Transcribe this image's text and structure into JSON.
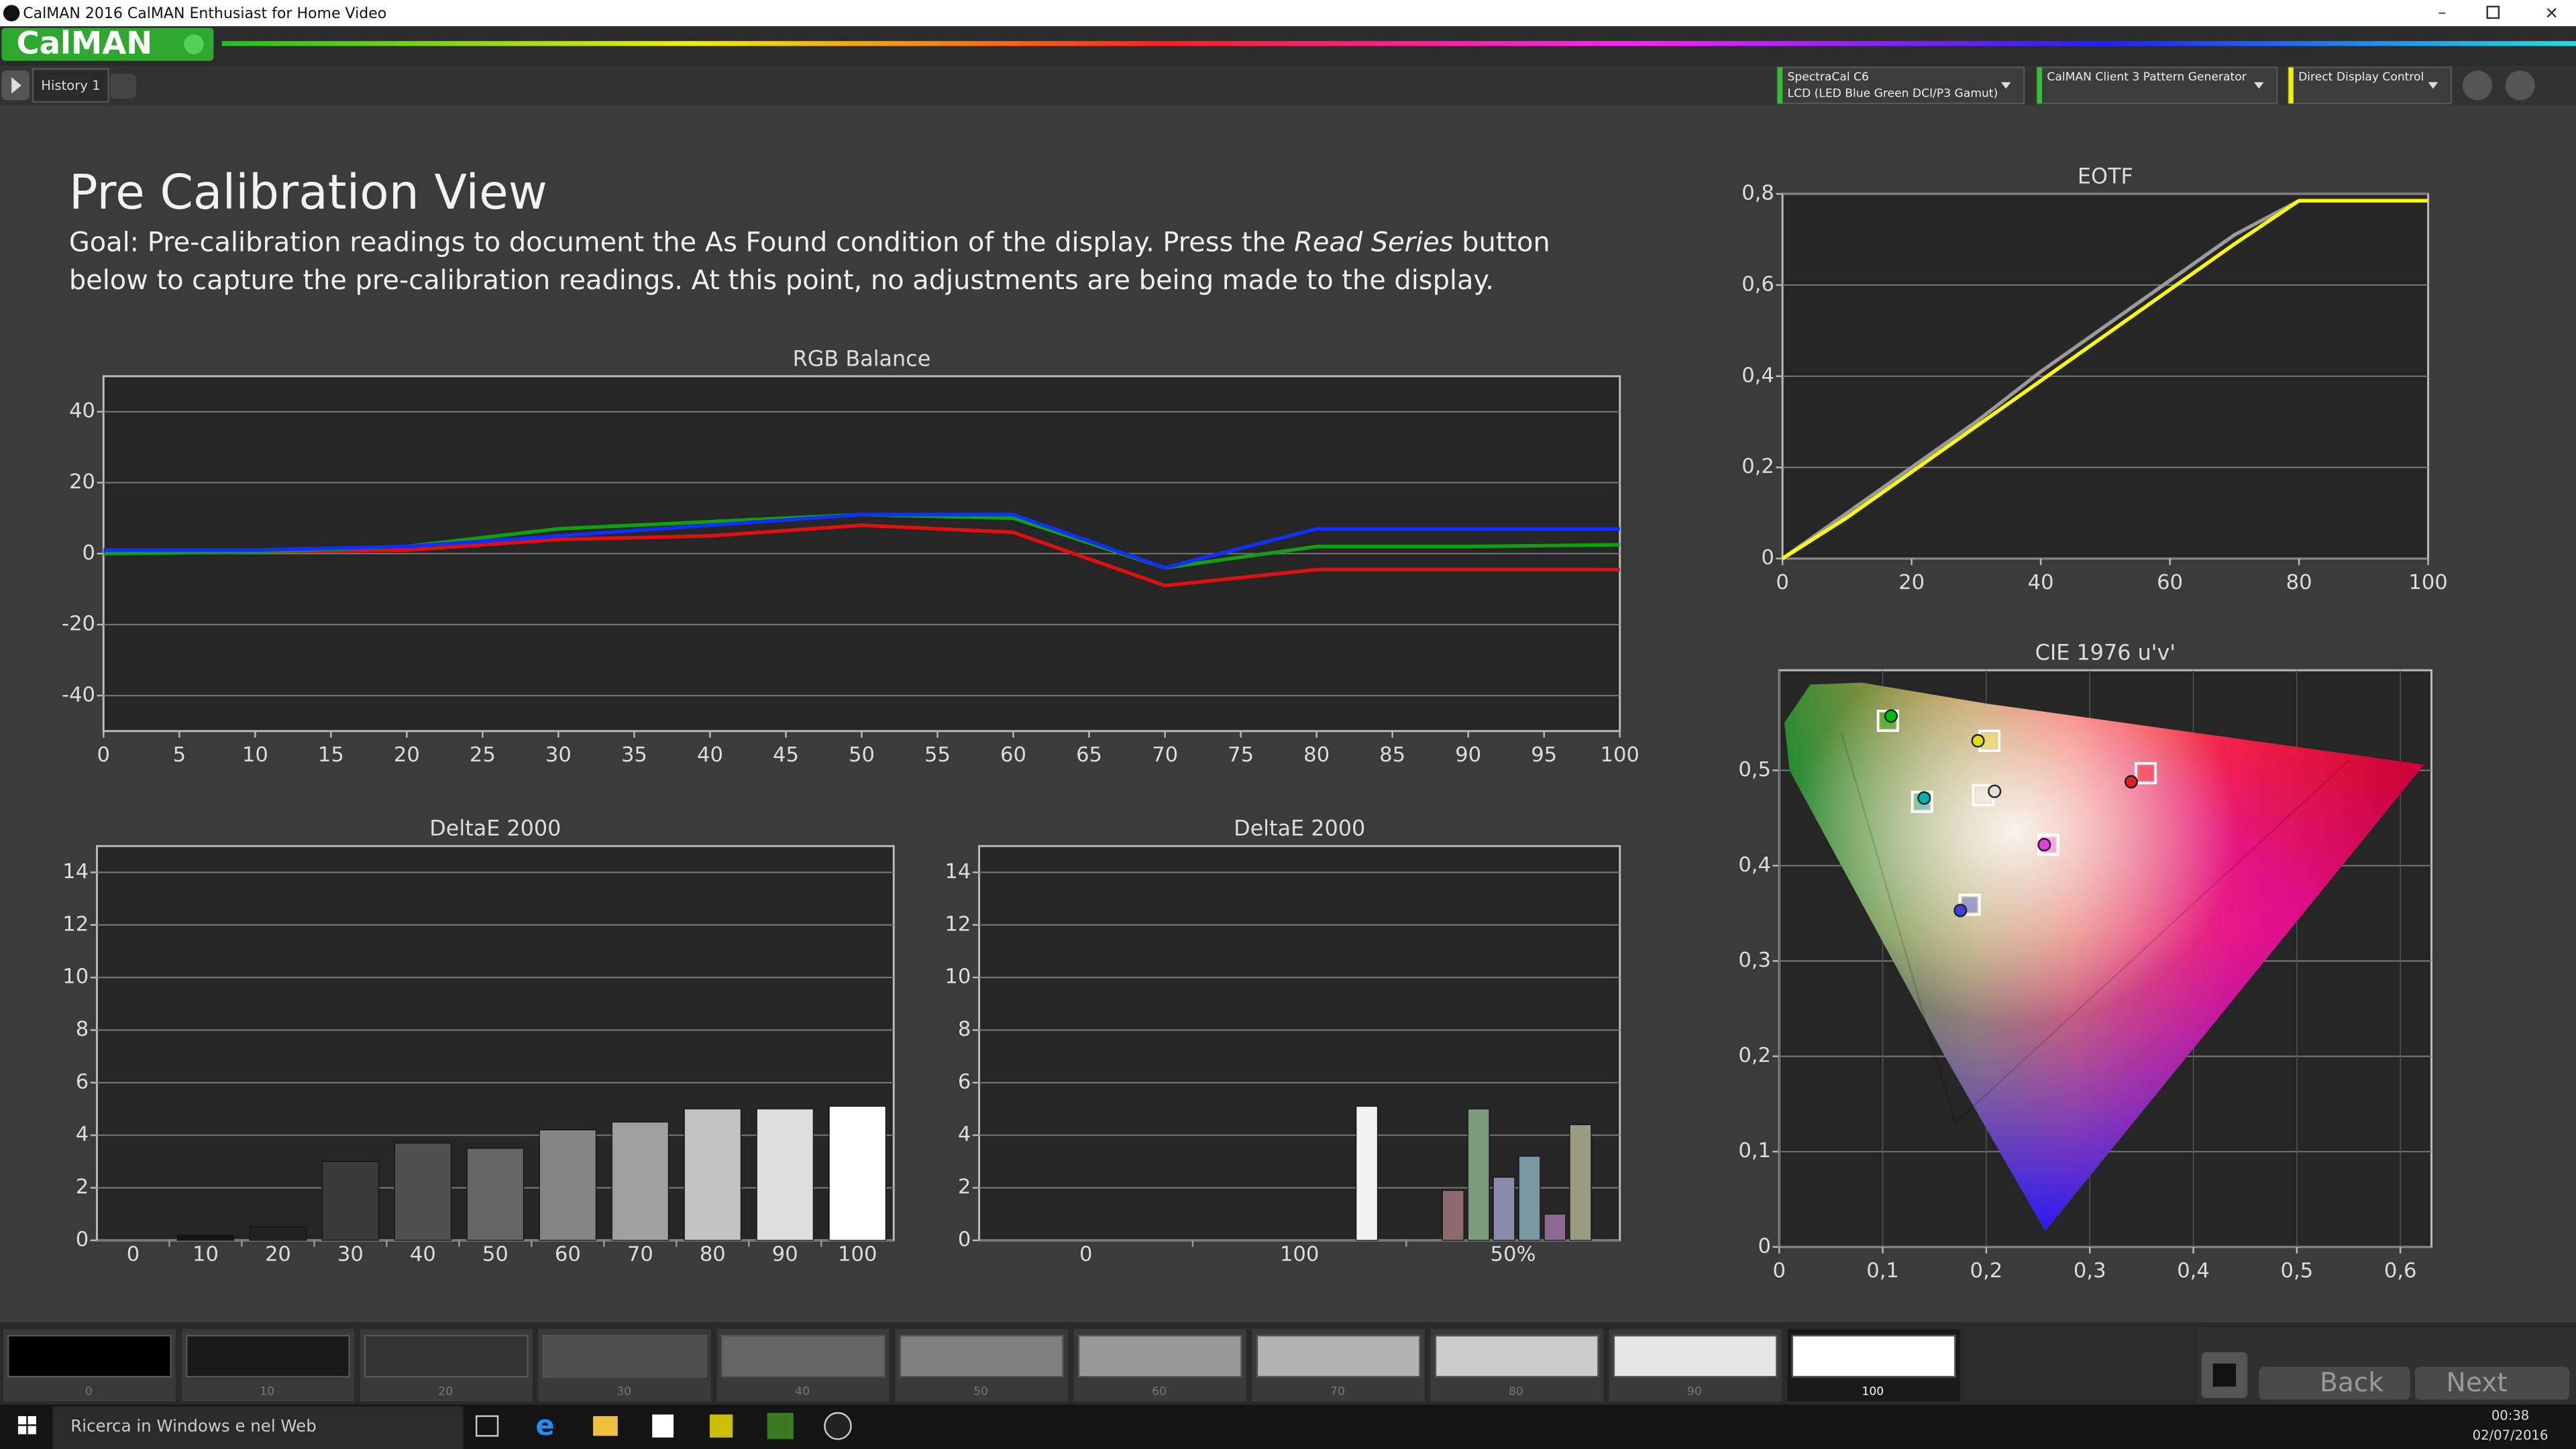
{
  "window": {
    "title": "CalMAN 2016 CalMAN Enthusiast for Home Video"
  },
  "toolbar": {
    "logo": "CalMAN",
    "tab": "History 1",
    "devices": [
      [
        "SpectraCal C6",
        "LCD (LED Blue Green DCI/P3 Gamut)"
      ],
      [
        "CalMAN Client 3 Pattern Generator"
      ],
      [
        "Direct Display Control"
      ]
    ]
  },
  "page": {
    "heading": "Pre Calibration View",
    "goal": [
      "Goal: Pre-calibration readings to document the As Found condition of the display. Press the ",
      "Read Series",
      " button below to capture the pre-calibration readings. At this point, no adjustments are being made to the display."
    ]
  },
  "chart_data": [
    {
      "type": "line",
      "title": "RGB Balance",
      "x": [
        0,
        10,
        20,
        30,
        40,
        50,
        60,
        70,
        80,
        90,
        100
      ],
      "series": [
        {
          "color": "#e01010",
          "values": [
            0,
            0.5,
            1,
            4,
            5,
            8,
            6,
            -9,
            -4.5,
            -4.5,
            -4.5
          ]
        },
        {
          "color": "#10a010",
          "values": [
            0,
            0.5,
            2,
            7,
            9,
            11,
            10,
            -4,
            2,
            2,
            2.5
          ]
        },
        {
          "color": "#1030ff",
          "values": [
            1,
            1,
            2,
            5,
            8,
            11,
            11,
            -4,
            7,
            7,
            7
          ]
        }
      ],
      "xlim": [
        0,
        100
      ],
      "xticks": [
        0,
        5,
        10,
        15,
        20,
        25,
        30,
        35,
        40,
        45,
        50,
        55,
        60,
        65,
        70,
        75,
        80,
        85,
        90,
        95,
        100
      ],
      "ylim": [
        -50,
        50
      ],
      "yticks": [
        -40,
        -20,
        0,
        20,
        40
      ],
      "grid": true
    },
    {
      "type": "bar",
      "title": "DeltaE 2000",
      "categories": [
        "0",
        "10",
        "20",
        "30",
        "40",
        "50",
        "60",
        "70",
        "80",
        "90",
        "100"
      ],
      "values": [
        0,
        0.2,
        0.5,
        3,
        3.7,
        3.5,
        4.2,
        4.5,
        5,
        5,
        5.1
      ],
      "colors": [
        "#000000",
        "#141414",
        "#222222",
        "#3a3a3a",
        "#505050",
        "#666666",
        "#858585",
        "#a0a0a0",
        "#c2c2c2",
        "#dedede",
        "#ffffff"
      ],
      "ylim": [
        0,
        15
      ],
      "yticks": [
        0,
        2,
        4,
        6,
        8,
        10,
        12,
        14
      ],
      "grid": true
    },
    {
      "type": "bar",
      "title": "DeltaE 2000",
      "categories": [
        "0",
        "100",
        "50%"
      ],
      "series": [
        {
          "color": "#f2f2f2",
          "values": [
            null,
            5.1,
            null
          ]
        },
        {
          "color": "#8c6a6e",
          "values": [
            null,
            null,
            1.9
          ]
        },
        {
          "color": "#7d9a7d",
          "values": [
            null,
            null,
            5
          ]
        },
        {
          "color": "#8a8aaa",
          "values": [
            null,
            null,
            2.4
          ]
        },
        {
          "color": "#7a9aa2",
          "values": [
            null,
            null,
            3.2
          ]
        },
        {
          "color": "#8c6a90",
          "values": [
            null,
            null,
            1
          ]
        },
        {
          "color": "#9c9c82",
          "values": [
            null,
            null,
            4.4
          ]
        }
      ],
      "ylim": [
        0,
        15
      ],
      "yticks": [
        0,
        2,
        4,
        6,
        8,
        10,
        12,
        14
      ],
      "grid": true
    },
    {
      "type": "line",
      "title": "EOTF",
      "x": [
        0,
        10,
        20,
        30,
        40,
        50,
        60,
        70,
        80,
        90,
        100
      ],
      "series": [
        {
          "color": "#9a9a9a",
          "values": [
            0,
            0.1,
            0.2,
            0.3,
            0.41,
            0.51,
            0.61,
            0.71,
            0.785,
            0.785,
            0.785
          ]
        },
        {
          "color": "#ffff00",
          "values": [
            0,
            0.09,
            0.19,
            0.29,
            0.39,
            0.49,
            0.59,
            0.69,
            0.785,
            0.785,
            0.785
          ]
        }
      ],
      "xlim": [
        0,
        100
      ],
      "xticks": [
        0,
        20,
        40,
        60,
        80,
        100
      ],
      "ylim": [
        0,
        0.8
      ],
      "yticks": [
        0,
        {
          "value": 0.2,
          "label": "0,2"
        },
        {
          "value": 0.4,
          "label": "0,4"
        },
        {
          "value": 0.6,
          "label": "0,6"
        },
        {
          "value": 0.8,
          "label": "0,8"
        }
      ],
      "grid": true
    },
    {
      "type": "scatter",
      "title": "CIE 1976 u'v'",
      "series": [
        {
          "marker": "square",
          "x": [
            0.105,
            0.203,
            0.138,
            0.197,
            0.354,
            0.26,
            0.184
          ],
          "values": [
            0.552,
            0.531,
            0.467,
            0.474,
            0.497,
            0.422,
            0.359
          ],
          "colors": [
            "#00c000",
            "#ffff40",
            "#00c0c0",
            "#ffffff",
            "#ff2020",
            "#ff40ff",
            "#4040ff"
          ]
        },
        {
          "marker": "circle",
          "x": [
            0.108,
            0.192,
            0.14,
            0.208,
            0.34,
            0.256,
            0.175
          ],
          "values": [
            0.557,
            0.531,
            0.471,
            0.478,
            0.488,
            0.422,
            0.353
          ],
          "colors": [
            "#00c000",
            "#e0e000",
            "#00b0b0",
            "#e0e0e0",
            "#e02020",
            "#e040e0",
            "#4040e0"
          ]
        }
      ],
      "xlim": [
        0,
        0.63
      ],
      "xticks": [
        0,
        {
          "value": 0.1,
          "label": "0,1"
        },
        {
          "value": 0.2,
          "label": "0,2"
        },
        {
          "value": 0.3,
          "label": "0,3"
        },
        {
          "value": 0.4,
          "label": "0,4"
        },
        {
          "value": 0.5,
          "label": "0,5"
        },
        {
          "value": 0.6,
          "label": "0,6"
        }
      ],
      "ylim": [
        0,
        0.605
      ],
      "yticks": [
        0,
        {
          "value": 0.1,
          "label": "0,1"
        },
        {
          "value": 0.2,
          "label": "0,2"
        },
        {
          "value": 0.3,
          "label": "0,3"
        },
        {
          "value": 0.4,
          "label": "0,4"
        },
        {
          "value": 0.5,
          "label": "0,5"
        }
      ],
      "grid": true
    }
  ],
  "footer": {
    "swatch_labels": [
      0,
      10,
      20,
      30,
      40,
      50,
      60,
      70,
      80,
      90,
      100
    ],
    "back": "Back",
    "next": "Next"
  },
  "taskbar": {
    "search": "Ricerca in Windows e nel Web",
    "time": "00:38",
    "date": "02/07/2016"
  }
}
